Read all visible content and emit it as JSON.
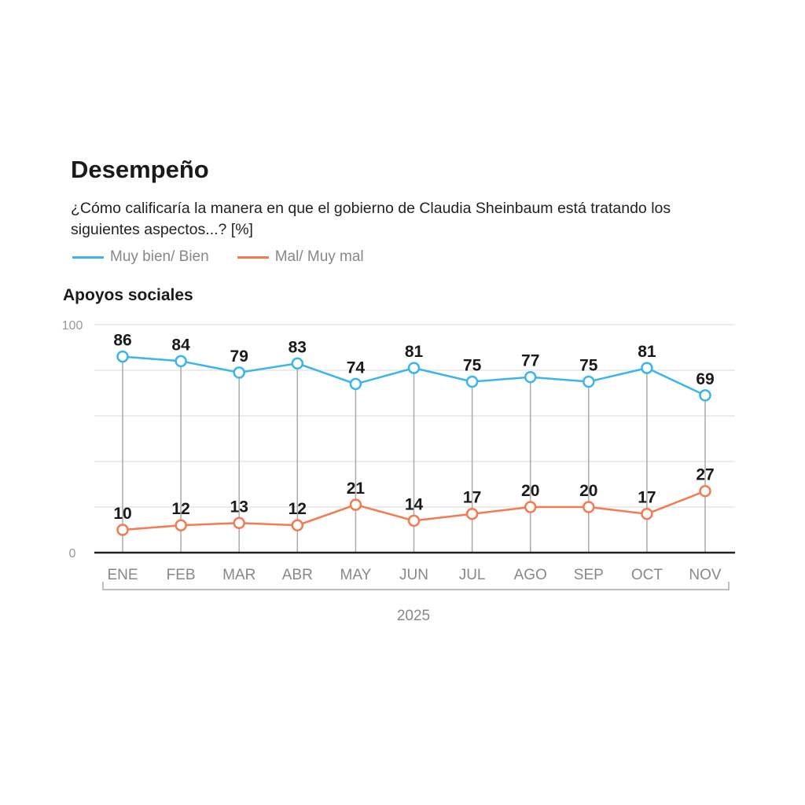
{
  "title": "Desempeño",
  "subtitle": "¿Cómo calificaría la manera en que el gobierno de Claudia Sheinbaum está tratando los siguientes aspectos...? [%]",
  "chart_data": {
    "type": "line",
    "title": "Apoyos sociales",
    "categories": [
      "ENE",
      "FEB",
      "MAR",
      "ABR",
      "MAY",
      "JUN",
      "JUL",
      "AGO",
      "SEP",
      "OCT",
      "NOV"
    ],
    "xlabel": "2025",
    "ylabel": "",
    "ylim": [
      0,
      100
    ],
    "yticks": [
      0,
      100
    ],
    "gridlines": [
      0,
      20,
      40,
      60,
      80,
      100
    ],
    "grid": true,
    "legend_placement": "top-left",
    "series": [
      {
        "name": "Muy bien/ Bien",
        "color": "#3bb5ee",
        "values": [
          86,
          84,
          79,
          83,
          74,
          81,
          75,
          77,
          75,
          81,
          69
        ]
      },
      {
        "name": "Mal/ Muy mal",
        "color": "#f47a52",
        "values": [
          10,
          12,
          13,
          12,
          21,
          14,
          17,
          20,
          20,
          17,
          27
        ]
      }
    ]
  }
}
